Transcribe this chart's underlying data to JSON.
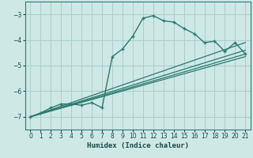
{
  "xlabel": "Humidex (Indice chaleur)",
  "background_color": "#cde8e5",
  "grid_color": "#aacfcb",
  "line_color": "#2d7a6e",
  "xlim": [
    -0.5,
    21.5
  ],
  "ylim": [
    -7.5,
    -2.5
  ],
  "yticks": [
    -7,
    -6,
    -5,
    -4,
    -3
  ],
  "xticks": [
    0,
    1,
    2,
    3,
    4,
    5,
    6,
    7,
    8,
    9,
    10,
    11,
    12,
    13,
    14,
    15,
    16,
    17,
    18,
    19,
    20,
    21
  ],
  "main_curve_x": [
    0,
    1,
    2,
    3,
    4,
    5,
    6,
    7,
    8,
    9,
    10,
    11,
    12,
    13,
    14,
    15,
    16,
    17,
    18,
    19,
    20,
    21
  ],
  "main_curve_y": [
    -7.0,
    -6.85,
    -6.65,
    -6.5,
    -6.5,
    -6.55,
    -6.45,
    -6.65,
    -4.65,
    -4.35,
    -3.85,
    -3.15,
    -3.05,
    -3.25,
    -3.3,
    -3.55,
    -3.75,
    -4.1,
    -4.05,
    -4.45,
    -4.1,
    -4.55
  ],
  "line1_x": [
    0,
    21
  ],
  "line1_y": [
    -7.0,
    -4.1
  ],
  "line2_x": [
    0,
    21
  ],
  "line2_y": [
    -7.0,
    -4.4
  ],
  "line3_x": [
    0,
    21
  ],
  "line3_y": [
    -7.0,
    -4.55
  ],
  "line4_x": [
    0,
    21
  ],
  "line4_y": [
    -7.0,
    -4.65
  ]
}
